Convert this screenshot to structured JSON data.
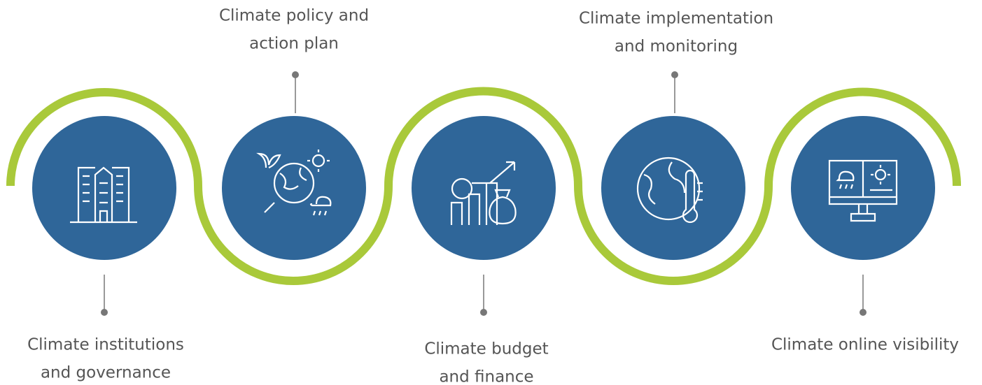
{
  "steps": [
    {
      "label": [
        "Climate institutions",
        "and governance"
      ]
    },
    {
      "label": [
        "Climate policy and",
        "action plan"
      ]
    },
    {
      "label": [
        "Climate budget",
        "and finance"
      ]
    },
    {
      "label": [
        "Climate implementation",
        "and monitoring"
      ]
    },
    {
      "label": [
        "Climate online visibility"
      ]
    }
  ]
}
